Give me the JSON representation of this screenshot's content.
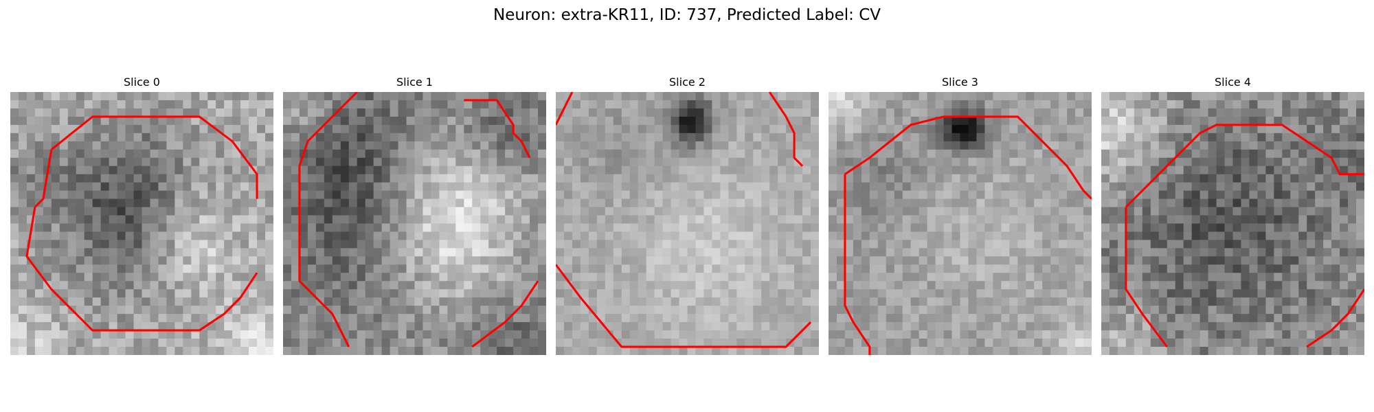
{
  "figure": {
    "title": "Neuron: extra-KR11, ID: 737, Predicted Label: CV"
  },
  "colors": {
    "contour": "#ff0000",
    "background": "#ffffff"
  },
  "panels": [
    {
      "title": "Slice 0"
    },
    {
      "title": "Slice 1"
    },
    {
      "title": "Slice 2"
    },
    {
      "title": "Slice 3"
    },
    {
      "title": "Slice 4"
    }
  ]
}
